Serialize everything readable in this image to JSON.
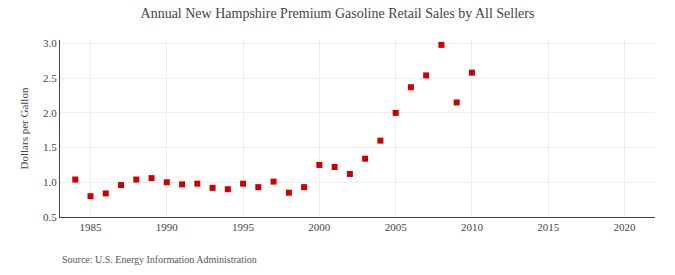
{
  "chart_data": {
    "type": "scatter",
    "title": "Annual New Hampshire Premium Gasoline Retail Sales by All Sellers",
    "y_label": "Dollars per Gallon",
    "annotations": [
      "Source: U.S. Energy Information Administration"
    ],
    "x": [
      1984,
      1985,
      1986,
      1987,
      1988,
      1989,
      1990,
      1991,
      1992,
      1993,
      1994,
      1995,
      1996,
      1997,
      1998,
      1999,
      2000,
      2001,
      2002,
      2003,
      2004,
      2005,
      2006,
      2007,
      2008,
      2009,
      2010
    ],
    "values": [
      1.04,
      0.8,
      0.84,
      0.96,
      1.04,
      1.06,
      1.0,
      0.97,
      0.98,
      0.92,
      0.9,
      0.98,
      0.93,
      1.01,
      0.85,
      0.93,
      1.25,
      1.22,
      1.12,
      1.34,
      1.6,
      2.0,
      2.37,
      2.54,
      2.98,
      2.15,
      2.58
    ],
    "color": "#cc0000",
    "marker": "square",
    "xlim": [
      1983,
      2022
    ],
    "ylim": [
      0.5,
      3.05
    ],
    "xticks": [
      1985,
      1990,
      1995,
      2000,
      2005,
      2010,
      2015,
      2020
    ],
    "yticks": [
      0.5,
      {
        "value": 1,
        "label": "1.0"
      },
      1.5,
      {
        "value": 2,
        "label": "2.0"
      },
      2.5,
      {
        "value": 3,
        "label": "3.0"
      }
    ],
    "grid": true
  }
}
